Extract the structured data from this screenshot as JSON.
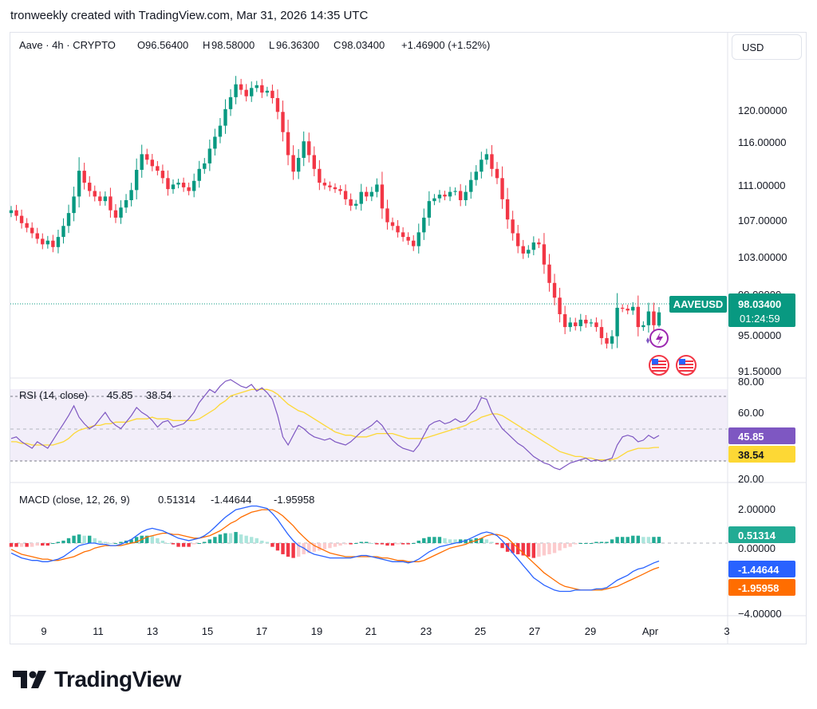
{
  "header": "tronweekly created with TradingView.com, Mar 31, 2026 14:35 UTC",
  "brand": "TradingView",
  "currency_button": "USD",
  "legend": {
    "symbol": "Aave · 4h · CRYPTO",
    "o_label": "O",
    "o_val": "96.56400",
    "h_label": "H",
    "h_val": "98.58000",
    "l_label": "L",
    "l_val": "96.36300",
    "c_label": "C",
    "c_val": "98.03400",
    "change": "+1.46900 (+1.52%)"
  },
  "rsi_legend": {
    "label": "RSI (14, close)",
    "rsi": "45.85",
    "ma": "38.54"
  },
  "macd_legend": {
    "label": "MACD (close, 12, 26, 9)",
    "hist": "0.51314",
    "macd": "-1.44644",
    "signal": "-1.95958"
  },
  "price_tag": {
    "ticker": "AAVEUSD",
    "price": "98.03400",
    "countdown": "01:24:59"
  },
  "colors": {
    "up": "#089981",
    "down": "#f23645",
    "rsi": "#7e57c2",
    "rsi_ma": "#fdd835",
    "macd": "#2962ff",
    "signal": "#ff6d00"
  },
  "chart_data": [
    {
      "type": "candlestick",
      "title": "Aave · 4h · CRYPTO",
      "price_axis_ticks": [
        "120.00000",
        "116.00000",
        "111.00000",
        "107.00000",
        "103.00000",
        "99.00000",
        "95.00000",
        "91.50000"
      ],
      "x_ticks": [
        "9",
        "11",
        "13",
        "15",
        "17",
        "19",
        "21",
        "23",
        "25",
        "27",
        "29",
        "Apr",
        "3"
      ],
      "last": {
        "open": 96.564,
        "high": 98.58,
        "low": 96.363,
        "close": 98.034,
        "change": 1.469,
        "change_pct": 1.52
      },
      "closes": [
        109.1,
        108.5,
        107.7,
        107.2,
        106.6,
        106,
        105.4,
        105.8,
        105.1,
        106.2,
        107.4,
        108.8,
        110.6,
        113.4,
        112.1,
        111.2,
        110.6,
        110.1,
        110.6,
        109.1,
        108.3,
        109.4,
        110.2,
        111.3,
        113.5,
        115.2,
        114.6,
        113.9,
        113.4,
        112.6,
        111.4,
        111.9,
        112.1,
        111.6,
        111.2,
        112.3,
        113.6,
        114.2,
        115.8,
        117.1,
        118.3,
        120.1,
        121.4,
        122.8,
        122.2,
        121.5,
        122.4,
        122.7,
        121.9,
        122.1,
        121.3,
        119.8,
        117.6,
        115.1,
        113.3,
        114.8,
        116.6,
        115.1,
        113.6,
        112.1,
        111.8,
        111.6,
        111.4,
        111.2,
        110.3,
        109.6,
        109.8,
        111.1,
        110.6,
        111.1,
        111.9,
        109.3,
        107.8,
        107.4,
        106.7,
        106.2,
        105.8,
        105.2,
        106.7,
        108.3,
        110.1,
        110.4,
        110.8,
        110.6,
        111.1,
        111.2,
        110.2,
        111.1,
        112.4,
        113.3,
        114.6,
        115.2,
        113.6,
        112.6,
        110.3,
        108.1,
        106.6,
        105.2,
        104.4,
        104.8,
        105.6,
        105.4,
        103.2,
        101.2,
        99.6,
        97.8,
        96.4,
        96.9,
        96.5,
        97.2,
        96.8,
        96.9,
        96.4,
        95.2,
        94.6,
        95.4,
        98.5,
        98.4,
        98.2,
        98.6,
        96.4,
        96.6,
        98.1,
        96.6,
        98.0
      ],
      "rsi": {
        "name": "RSI (14, close)",
        "value": 45.85,
        "ma": 38.54,
        "axis_ticks": [
          "80.00",
          "60.00",
          "20.00"
        ],
        "band": [
          30,
          70
        ]
      },
      "rsi_series": [
        44,
        45,
        42,
        40,
        38,
        42,
        40,
        38,
        43,
        48,
        53,
        58,
        64,
        57,
        53,
        50,
        52,
        56,
        60,
        55,
        52,
        50,
        54,
        58,
        63,
        60,
        58,
        55,
        51,
        54,
        55,
        51,
        52,
        53,
        56,
        60,
        66,
        70,
        74,
        72,
        76,
        79,
        80,
        78,
        76,
        75,
        77,
        73,
        75,
        72,
        68,
        58,
        45,
        40,
        46,
        52,
        50,
        47,
        45,
        44,
        43,
        44,
        42,
        41,
        40,
        42,
        45,
        48,
        50,
        52,
        55,
        52,
        47,
        43,
        40,
        38,
        37,
        36,
        40,
        46,
        52,
        54,
        55,
        53,
        54,
        56,
        54,
        55,
        59,
        62,
        69,
        68,
        60,
        55,
        50,
        47,
        44,
        41,
        39,
        36,
        33,
        31,
        29,
        28,
        26,
        25,
        27,
        29,
        30,
        31,
        32,
        30,
        31,
        30,
        31,
        32,
        40,
        45,
        46,
        45,
        42,
        43,
        46,
        44,
        45.85
      ],
      "rsi_ma_series": [
        42,
        42,
        41,
        41,
        40,
        40,
        40,
        40,
        40,
        41,
        42,
        44,
        47,
        49,
        50,
        51,
        52,
        52,
        53,
        53,
        54,
        54,
        54,
        55,
        56,
        56,
        56,
        57,
        56,
        56,
        56,
        55,
        55,
        55,
        55,
        55,
        56,
        58,
        60,
        62,
        65,
        67,
        70,
        71,
        72,
        73,
        74,
        74,
        74,
        74,
        73,
        71,
        68,
        65,
        63,
        61,
        60,
        58,
        56,
        54,
        52,
        50,
        48,
        47,
        46,
        46,
        45,
        45,
        45,
        46,
        47,
        47,
        47,
        47,
        46,
        45,
        44,
        44,
        44,
        44,
        45,
        46,
        47,
        48,
        49,
        50,
        51,
        52,
        54,
        55,
        57,
        58,
        59,
        59,
        58,
        56,
        54,
        52,
        50,
        48,
        46,
        44,
        42,
        40,
        38,
        36,
        35,
        34,
        33,
        33,
        32,
        32,
        31,
        31,
        31,
        31,
        32,
        34,
        36,
        37,
        38,
        38,
        38,
        38.5,
        38.54
      ],
      "macd": {
        "name": "MACD (close, 12, 26, 9)",
        "histogram": 0.51314,
        "macd": -1.44644,
        "signal": -1.95958,
        "axis_ticks": [
          "2.00000",
          "0.00000",
          "-4.00000"
        ]
      },
      "macd_series": [
        -0.8,
        -1.0,
        -1.2,
        -1.3,
        -1.4,
        -1.4,
        -1.5,
        -1.5,
        -1.4,
        -1.3,
        -1.1,
        -0.8,
        -0.5,
        -0.2,
        -0.1,
        0.0,
        0.0,
        -0.1,
        -0.1,
        -0.2,
        -0.2,
        -0.1,
        0.1,
        0.3,
        0.6,
        0.9,
        1.1,
        1.2,
        1.1,
        1.0,
        0.8,
        0.6,
        0.4,
        0.3,
        0.2,
        0.3,
        0.4,
        0.6,
        0.9,
        1.3,
        1.7,
        2.1,
        2.4,
        2.7,
        2.8,
        2.9,
        3.0,
        3.0,
        2.9,
        2.8,
        2.4,
        1.9,
        1.3,
        0.7,
        0.2,
        -0.2,
        -0.4,
        -0.7,
        -0.9,
        -1.0,
        -1.1,
        -1.2,
        -1.2,
        -1.2,
        -1.2,
        -1.2,
        -1.1,
        -1.0,
        -1.0,
        -1.1,
        -1.2,
        -1.3,
        -1.4,
        -1.5,
        -1.5,
        -1.5,
        -1.6,
        -1.5,
        -1.3,
        -1.0,
        -0.7,
        -0.5,
        -0.3,
        -0.2,
        -0.1,
        0.0,
        0.1,
        0.2,
        0.4,
        0.6,
        0.8,
        0.9,
        0.8,
        0.6,
        0.2,
        -0.3,
        -0.8,
        -1.3,
        -1.8,
        -2.3,
        -2.8,
        -3.1,
        -3.4,
        -3.6,
        -3.8,
        -3.9,
        -3.9,
        -3.9,
        -3.8,
        -3.8,
        -3.8,
        -3.8,
        -3.7,
        -3.7,
        -3.6,
        -3.3,
        -3.0,
        -2.8,
        -2.6,
        -2.3,
        -2.1,
        -2.0,
        -1.8,
        -1.6,
        -1.45
      ],
      "signal_series": [
        -0.5,
        -0.7,
        -0.9,
        -1.0,
        -1.1,
        -1.2,
        -1.3,
        -1.3,
        -1.4,
        -1.4,
        -1.3,
        -1.2,
        -1.1,
        -0.9,
        -0.7,
        -0.6,
        -0.4,
        -0.3,
        -0.2,
        -0.2,
        -0.2,
        -0.2,
        -0.1,
        0.0,
        0.1,
        0.3,
        0.5,
        0.6,
        0.7,
        0.8,
        0.8,
        0.7,
        0.7,
        0.6,
        0.5,
        0.4,
        0.4,
        0.5,
        0.6,
        0.8,
        1.0,
        1.3,
        1.6,
        1.8,
        2.1,
        2.3,
        2.5,
        2.6,
        2.7,
        2.7,
        2.7,
        2.5,
        2.2,
        1.8,
        1.4,
        0.9,
        0.5,
        0.1,
        -0.2,
        -0.4,
        -0.6,
        -0.8,
        -0.9,
        -1.0,
        -1.1,
        -1.1,
        -1.1,
        -1.1,
        -1.1,
        -1.1,
        -1.1,
        -1.2,
        -1.2,
        -1.3,
        -1.4,
        -1.4,
        -1.5,
        -1.5,
        -1.5,
        -1.4,
        -1.2,
        -1.0,
        -0.8,
        -0.6,
        -0.4,
        -0.3,
        -0.2,
        -0.1,
        0.1,
        0.2,
        0.4,
        0.6,
        0.7,
        0.7,
        0.6,
        0.4,
        0.0,
        -0.4,
        -0.8,
        -1.2,
        -1.6,
        -2.0,
        -2.4,
        -2.7,
        -3.0,
        -3.3,
        -3.5,
        -3.6,
        -3.7,
        -3.8,
        -3.8,
        -3.8,
        -3.8,
        -3.8,
        -3.7,
        -3.6,
        -3.5,
        -3.3,
        -3.1,
        -2.9,
        -2.7,
        -2.5,
        -2.3,
        -2.1,
        -1.96
      ]
    }
  ]
}
